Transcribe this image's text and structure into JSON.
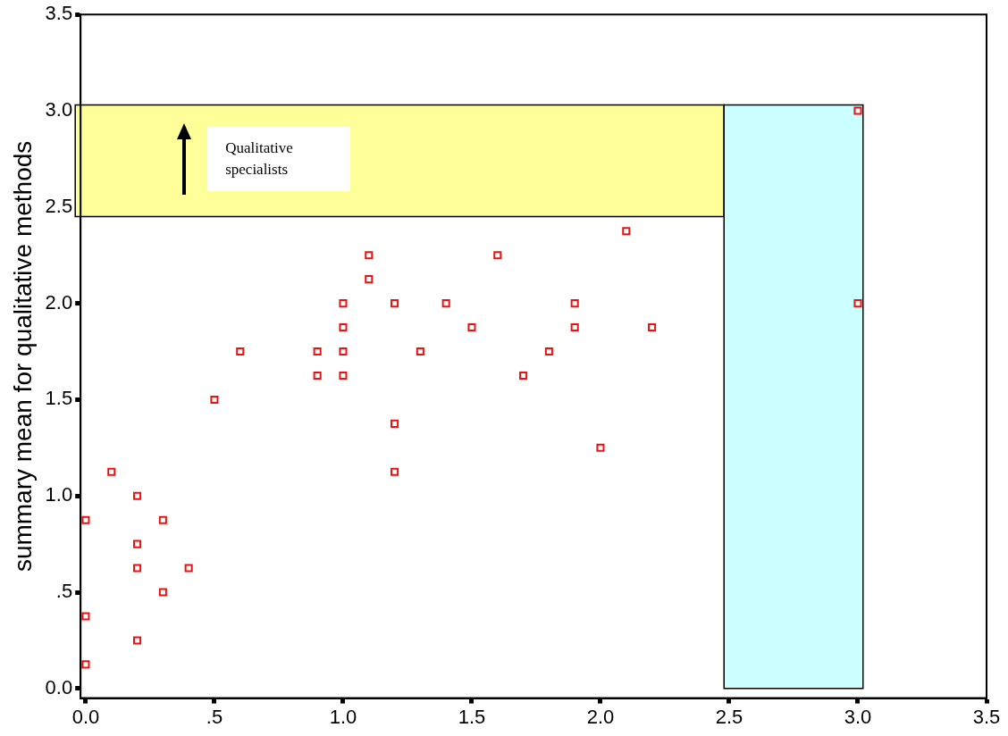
{
  "chart_data": {
    "type": "scatter",
    "ylabel": "summary mean for qualitative methods",
    "annotations": [
      "Qualitative specialists"
    ],
    "series": [
      {
        "color": "#ee1111",
        "x": [
          0,
          0,
          0,
          0.1,
          0.2,
          0.2,
          0.2,
          0.2,
          0.3,
          0.3,
          0.4,
          0.5,
          0.6,
          0.9,
          0.9,
          1.0,
          1.0,
          1.0,
          1.0,
          1.1,
          1.1,
          1.2,
          1.2,
          1.2,
          1.3,
          1.4,
          1.5,
          1.6,
          1.7,
          1.8,
          1.9,
          1.9,
          2.0,
          2.1,
          2.2,
          3.0,
          3.0
        ],
        "values": [
          0.875,
          0.375,
          0.125,
          1.125,
          1.0,
          0.75,
          0.625,
          0.25,
          0.875,
          0.5,
          0.625,
          1.5,
          1.75,
          1.75,
          1.625,
          2.0,
          1.875,
          1.75,
          1.625,
          2.25,
          2.125,
          2.0,
          1.375,
          1.125,
          1.75,
          2.0,
          1.875,
          2.25,
          1.625,
          1.75,
          2.0,
          1.875,
          1.25,
          2.375,
          1.875,
          3.0,
          2.0
        ]
      }
    ],
    "marker": "square",
    "xlim": [
      -0.02,
      3.5
    ],
    "ylim": [
      -0.05,
      3.5
    ],
    "xticks": [
      {
        "value": 0,
        "label": "0.0"
      },
      {
        "value": 0.5,
        "label": ".5"
      },
      {
        "value": 1,
        "label": "1.0"
      },
      {
        "value": 1.5,
        "label": "1.5"
      },
      {
        "value": 2,
        "label": "2.0"
      },
      {
        "value": 2.5,
        "label": "2.5"
      },
      {
        "value": 3,
        "label": "3.0"
      },
      {
        "value": 3.5,
        "label": "3.5"
      }
    ],
    "yticks": [
      {
        "value": 0,
        "label": "0.0"
      },
      {
        "value": 0.5,
        "label": ".5"
      },
      {
        "value": 1,
        "label": "1.0"
      },
      {
        "value": 1.5,
        "label": "1.5"
      },
      {
        "value": 2,
        "label": "2.0"
      },
      {
        "value": 2.5,
        "label": "2.5"
      },
      {
        "value": 3,
        "label": "3.0"
      },
      {
        "value": 3.5,
        "label": "3.5"
      }
    ],
    "bands": [
      {
        "axis": "y",
        "from": 2.45,
        "to": 3.03,
        "color": "#ffff99"
      },
      {
        "axis": "x",
        "from": 2.48,
        "to": 3.02,
        "color": "#ccffff"
      }
    ]
  }
}
